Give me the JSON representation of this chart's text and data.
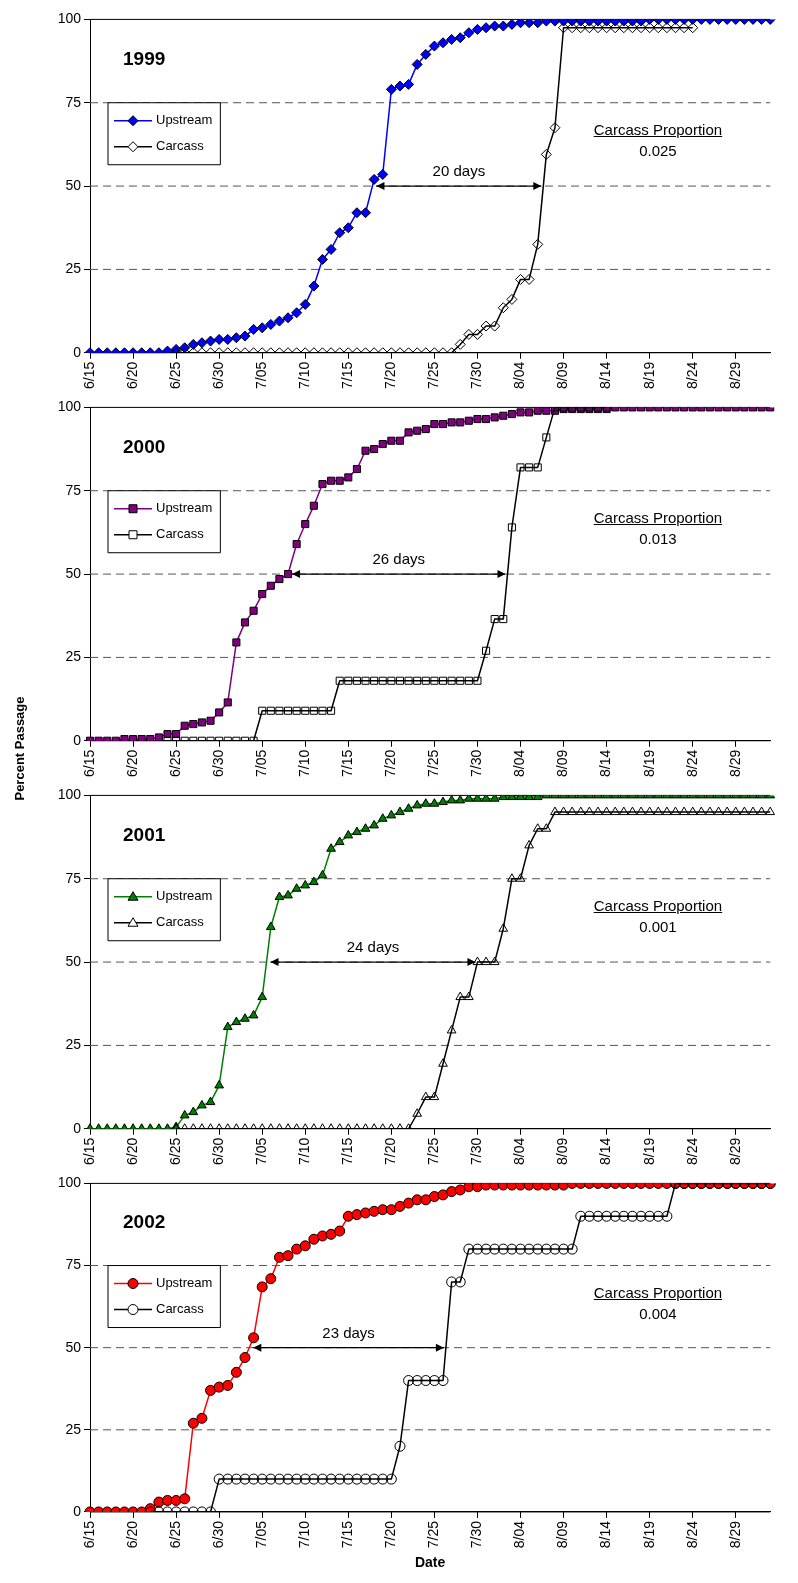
{
  "chart_data": [
    {
      "type": "line",
      "title": "1999",
      "categories": [
        "6/15",
        null,
        null,
        null,
        null,
        "6/20",
        null,
        null,
        null,
        null,
        "6/25",
        null,
        null,
        null,
        null,
        "6/30",
        null,
        null,
        null,
        null,
        "7/05",
        null,
        null,
        null,
        null,
        "7/10",
        null,
        null,
        null,
        null,
        "7/15",
        null,
        null,
        null,
        null,
        "7/20",
        null,
        null,
        null,
        null,
        "7/25",
        null,
        null,
        null,
        null,
        "7/30",
        null,
        null,
        null,
        null,
        "8/04",
        null,
        null,
        null,
        null,
        "8/09",
        null,
        null,
        null,
        null,
        "8/14",
        null,
        null,
        null,
        null,
        "8/19",
        null,
        null,
        null,
        null,
        "8/24",
        null,
        null,
        null,
        null,
        "8/29",
        null,
        null,
        null,
        null
      ],
      "series": [
        {
          "name": "Upstream",
          "color": "#0000ff",
          "values": [
            0,
            0,
            0,
            0,
            0,
            0,
            0,
            0,
            0,
            0.5,
            1,
            1.5,
            2.5,
            3,
            3.5,
            4,
            4,
            4.5,
            5,
            7,
            7.5,
            8.5,
            9.5,
            10.5,
            12,
            14.5,
            20,
            28,
            31,
            36,
            37.5,
            42,
            42,
            52,
            53.5,
            79,
            80,
            80.5,
            86.5,
            89.5,
            92,
            93,
            94,
            94.5,
            96,
            97,
            97.5,
            98,
            98,
            98.5,
            99,
            99,
            99,
            99.5,
            99.5,
            99.5,
            99.5,
            99.5,
            99.5,
            99.5,
            99.5,
            99.5,
            99.5,
            99.5,
            99.5,
            100,
            100,
            100,
            100,
            100,
            100,
            100,
            100,
            100,
            100,
            100,
            100,
            100,
            100,
            100
          ]
        },
        {
          "name": "Carcass",
          "color": "#000000",
          "values": [
            null,
            null,
            null,
            null,
            null,
            null,
            null,
            null,
            null,
            null,
            0,
            0,
            0,
            0,
            0,
            0,
            0,
            0,
            0,
            0,
            0,
            0,
            0,
            0,
            0,
            0,
            0,
            0,
            0,
            0,
            0,
            0,
            0,
            0,
            0,
            0,
            0,
            0,
            0,
            0,
            0,
            0,
            0,
            2.5,
            5.5,
            5.5,
            8,
            8,
            13.5,
            16,
            22,
            22,
            32.5,
            59.5,
            67.5,
            97.5,
            97.5,
            97.5,
            97.5,
            97.5,
            97.5,
            97.5,
            97.5,
            97.5,
            97.5,
            97.5,
            97.5,
            97.5,
            97.5,
            97.5,
            97.5,
            null,
            null,
            null,
            null,
            null,
            null,
            null,
            null,
            null
          ]
        }
      ],
      "ylim": [
        0,
        100
      ],
      "yticks": [
        0,
        25,
        50,
        75,
        100
      ],
      "grid": "y",
      "legend": "top left",
      "marker": "diamond",
      "annotations": [
        "20 days",
        "Carcass Proportion",
        "0.025"
      ]
    },
    {
      "type": "line",
      "title": "2000",
      "ylabel": "Percent Passage",
      "categories": [
        "6/15",
        null,
        null,
        null,
        null,
        "6/20",
        null,
        null,
        null,
        null,
        "6/25",
        null,
        null,
        null,
        null,
        "6/30",
        null,
        null,
        null,
        null,
        "7/05",
        null,
        null,
        null,
        null,
        "7/10",
        null,
        null,
        null,
        null,
        "7/15",
        null,
        null,
        null,
        null,
        "7/20",
        null,
        null,
        null,
        null,
        "7/25",
        null,
        null,
        null,
        null,
        "7/30",
        null,
        null,
        null,
        null,
        "8/04",
        null,
        null,
        null,
        null,
        "8/09",
        null,
        null,
        null,
        null,
        "8/14",
        null,
        null,
        null,
        null,
        "8/19",
        null,
        null,
        null,
        null,
        "8/24",
        null,
        null,
        null,
        null,
        "8/29",
        null,
        null,
        null,
        null
      ],
      "series": [
        {
          "name": "Upstream",
          "color": "#800080",
          "values": [
            0,
            0,
            0,
            0,
            0.5,
            0.5,
            0.5,
            0.5,
            1,
            2,
            2,
            4.5,
            5,
            5.5,
            6,
            8.5,
            11.5,
            29.5,
            35.5,
            39,
            44,
            46.5,
            48.5,
            50,
            59,
            65,
            70.5,
            77,
            78,
            78,
            79,
            81.5,
            87,
            87.5,
            89,
            90,
            90,
            92.5,
            93,
            93.5,
            95,
            95,
            95.5,
            95.5,
            96,
            96.5,
            96.5,
            97,
            97.5,
            98,
            98.5,
            98.5,
            99,
            99,
            99,
            99.5,
            99.5,
            99.5,
            99.5,
            99.5,
            99.5,
            100,
            100,
            100,
            100,
            100,
            100,
            100,
            100,
            100,
            100,
            100,
            100,
            100,
            100,
            100,
            100,
            100,
            100,
            100
          ]
        },
        {
          "name": "Carcass",
          "color": "#000000",
          "values": [
            null,
            null,
            null,
            null,
            null,
            null,
            null,
            null,
            null,
            0,
            0,
            0,
            0,
            0,
            0,
            0,
            0,
            0,
            0,
            0,
            9,
            9,
            9,
            9,
            9,
            9,
            9,
            9,
            9,
            18,
            18,
            18,
            18,
            18,
            18,
            18,
            18,
            18,
            18,
            18,
            18,
            18,
            18,
            18,
            18,
            18,
            27,
            36.5,
            36.5,
            64,
            82,
            82,
            82,
            91,
            100,
            100,
            100,
            100,
            100,
            100,
            100,
            null,
            null,
            null,
            null,
            null,
            null,
            null,
            null,
            null,
            null,
            null,
            null,
            null,
            null,
            null,
            null,
            null,
            null,
            null
          ]
        }
      ],
      "ylim": [
        0,
        100
      ],
      "yticks": [
        0,
        25,
        50,
        75,
        100
      ],
      "grid": "y",
      "legend": "top left",
      "marker": "square",
      "annotations": [
        "26 days",
        "Carcass Proportion",
        "0.013"
      ]
    },
    {
      "type": "line",
      "title": "2001",
      "categories": [
        "6/15",
        null,
        null,
        null,
        null,
        "6/20",
        null,
        null,
        null,
        null,
        "6/25",
        null,
        null,
        null,
        null,
        "6/30",
        null,
        null,
        null,
        null,
        "7/05",
        null,
        null,
        null,
        null,
        "7/10",
        null,
        null,
        null,
        null,
        "7/15",
        null,
        null,
        null,
        null,
        "7/20",
        null,
        null,
        null,
        null,
        "7/25",
        null,
        null,
        null,
        null,
        "7/30",
        null,
        null,
        null,
        null,
        "8/04",
        null,
        null,
        null,
        null,
        "8/09",
        null,
        null,
        null,
        null,
        "8/14",
        null,
        null,
        null,
        null,
        "8/19",
        null,
        null,
        null,
        null,
        "8/24",
        null,
        null,
        null,
        null,
        "8/29",
        null,
        null,
        null,
        null
      ],
      "series": [
        {
          "name": "Upstream",
          "color": "#008000",
          "values": [
            0,
            0,
            0,
            0,
            0,
            0,
            0,
            0,
            0,
            0,
            0.5,
            4,
            5,
            7,
            8,
            13,
            30.5,
            32,
            33,
            34,
            39.5,
            60.5,
            69.5,
            70,
            72,
            73,
            74,
            76,
            84,
            86,
            88,
            89,
            90,
            91,
            93,
            94,
            95,
            96,
            97,
            97.5,
            97.5,
            98,
            98.5,
            98.5,
            99,
            99,
            99,
            99,
            99.5,
            99.5,
            99.5,
            99.5,
            99.5,
            100,
            100,
            100,
            100,
            100,
            100,
            100,
            100,
            100,
            100,
            100,
            100,
            100,
            100,
            100,
            100,
            100,
            100,
            100,
            100,
            100,
            100,
            100,
            100,
            100,
            100,
            100
          ]
        },
        {
          "name": "Carcass",
          "color": "#000000",
          "values": [
            null,
            null,
            null,
            null,
            null,
            null,
            null,
            null,
            null,
            null,
            0,
            0,
            0,
            0,
            0,
            0,
            0,
            0,
            0,
            0,
            0,
            0,
            0,
            0,
            0,
            0,
            0,
            0,
            0,
            0,
            0,
            0,
            0,
            0,
            0,
            0,
            0,
            0,
            4.5,
            9.5,
            9.5,
            19.5,
            29.5,
            39.5,
            39.5,
            50,
            50,
            50,
            60,
            75,
            75,
            85,
            90,
            90,
            95,
            95,
            95,
            95,
            95,
            95,
            95,
            95,
            95,
            95,
            95,
            95,
            95,
            95,
            95,
            95,
            95,
            95,
            95,
            95,
            95,
            95,
            95,
            95,
            95,
            95
          ]
        }
      ],
      "ylim": [
        0,
        100
      ],
      "yticks": [
        0,
        25,
        50,
        75,
        100
      ],
      "grid": "y",
      "legend": "top left",
      "marker": "triangle",
      "annotations": [
        "24 days",
        "Carcass Proportion",
        "0.001"
      ]
    },
    {
      "type": "line",
      "title": "2002",
      "xlabel": "Date",
      "categories": [
        "6/15",
        null,
        null,
        null,
        null,
        "6/20",
        null,
        null,
        null,
        null,
        "6/25",
        null,
        null,
        null,
        null,
        "6/30",
        null,
        null,
        null,
        null,
        "7/05",
        null,
        null,
        null,
        null,
        "7/10",
        null,
        null,
        null,
        null,
        "7/15",
        null,
        null,
        null,
        null,
        "7/20",
        null,
        null,
        null,
        null,
        "7/25",
        null,
        null,
        null,
        null,
        "7/30",
        null,
        null,
        null,
        null,
        "8/04",
        null,
        null,
        null,
        null,
        "8/09",
        null,
        null,
        null,
        null,
        "8/14",
        null,
        null,
        null,
        null,
        "8/19",
        null,
        null,
        null,
        null,
        "8/24",
        null,
        null,
        null,
        null,
        "8/29",
        null,
        null,
        null,
        null
      ],
      "series": [
        {
          "name": "Upstream",
          "color": "#ff0000",
          "values": [
            0,
            0,
            0,
            0,
            0,
            0,
            0,
            1,
            3,
            3.5,
            3.5,
            4,
            27,
            28.5,
            37,
            38,
            38.5,
            42.5,
            47,
            53,
            68.5,
            71,
            77.5,
            78,
            80,
            81,
            83,
            84,
            84.5,
            85.5,
            90,
            90.5,
            91,
            91.5,
            92,
            92,
            93,
            94,
            95,
            95,
            96,
            96.5,
            97.5,
            98,
            99,
            99,
            99.5,
            99.5,
            99.5,
            99.5,
            99.5,
            99.5,
            99.5,
            99.5,
            99.5,
            99.5,
            100,
            100,
            100,
            100,
            100,
            100,
            100,
            100,
            100,
            100,
            100,
            100,
            100,
            100,
            100,
            100,
            100,
            100,
            100,
            100,
            100,
            100,
            100,
            100
          ]
        },
        {
          "name": "Carcass",
          "color": "#000000",
          "values": [
            null,
            null,
            null,
            null,
            null,
            null,
            null,
            0,
            0,
            0,
            0,
            0,
            0,
            0,
            0,
            10,
            10,
            10,
            10,
            10,
            10,
            10,
            10,
            10,
            10,
            10,
            10,
            10,
            10,
            10,
            10,
            10,
            10,
            10,
            10,
            10,
            20,
            40,
            40,
            40,
            40,
            40,
            70,
            70,
            80,
            80,
            80,
            80,
            80,
            80,
            80,
            80,
            80,
            80,
            80,
            80,
            80,
            90,
            90,
            90,
            90,
            90,
            90,
            90,
            90,
            90,
            90,
            90,
            100,
            100,
            100,
            100,
            100,
            100,
            100,
            100,
            100,
            100,
            100,
            100
          ]
        }
      ],
      "ylim": [
        0,
        100
      ],
      "yticks": [
        0,
        25,
        50,
        75,
        100
      ],
      "grid": "y",
      "legend": "top left",
      "marker": "circle",
      "annotations": [
        "23 days",
        "Carcass Proportion",
        "0.004"
      ]
    }
  ]
}
